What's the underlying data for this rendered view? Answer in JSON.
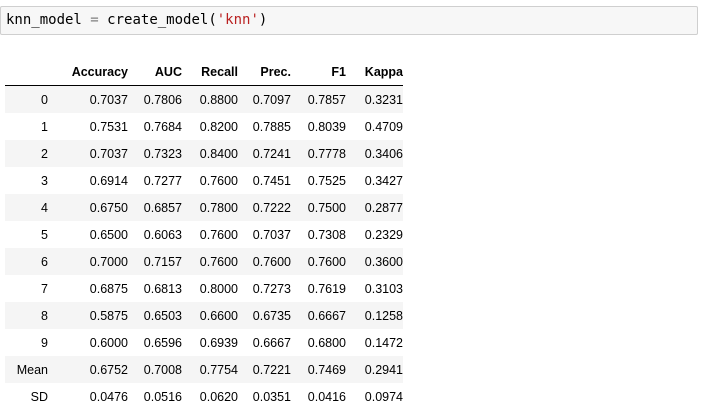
{
  "code_cell": {
    "var": "knn_model",
    "op": "=",
    "func": "create_model(",
    "arg": "'knn'",
    "close": ")"
  },
  "table": {
    "columns": [
      "Accuracy",
      "AUC",
      "Recall",
      "Prec.",
      "F1",
      "Kappa"
    ],
    "rows": [
      {
        "label": "0",
        "values": [
          "0.7037",
          "0.7806",
          "0.8800",
          "0.7097",
          "0.7857",
          "0.3231"
        ]
      },
      {
        "label": "1",
        "values": [
          "0.7531",
          "0.7684",
          "0.8200",
          "0.7885",
          "0.8039",
          "0.4709"
        ]
      },
      {
        "label": "2",
        "values": [
          "0.7037",
          "0.7323",
          "0.8400",
          "0.7241",
          "0.7778",
          "0.3406"
        ]
      },
      {
        "label": "3",
        "values": [
          "0.6914",
          "0.7277",
          "0.7600",
          "0.7451",
          "0.7525",
          "0.3427"
        ]
      },
      {
        "label": "4",
        "values": [
          "0.6750",
          "0.6857",
          "0.7800",
          "0.7222",
          "0.7500",
          "0.2877"
        ]
      },
      {
        "label": "5",
        "values": [
          "0.6500",
          "0.6063",
          "0.7600",
          "0.7037",
          "0.7308",
          "0.2329"
        ]
      },
      {
        "label": "6",
        "values": [
          "0.7000",
          "0.7157",
          "0.7600",
          "0.7600",
          "0.7600",
          "0.3600"
        ]
      },
      {
        "label": "7",
        "values": [
          "0.6875",
          "0.6813",
          "0.8000",
          "0.7273",
          "0.7619",
          "0.3103"
        ]
      },
      {
        "label": "8",
        "values": [
          "0.5875",
          "0.6503",
          "0.6600",
          "0.6735",
          "0.6667",
          "0.1258"
        ]
      },
      {
        "label": "9",
        "values": [
          "0.6000",
          "0.6596",
          "0.6939",
          "0.6667",
          "0.6800",
          "0.1472"
        ]
      },
      {
        "label": "Mean",
        "values": [
          "0.6752",
          "0.7008",
          "0.7754",
          "0.7221",
          "0.7469",
          "0.2941"
        ]
      },
      {
        "label": "SD",
        "values": [
          "0.0476",
          "0.0516",
          "0.0620",
          "0.0351",
          "0.0416",
          "0.0974"
        ]
      }
    ]
  }
}
